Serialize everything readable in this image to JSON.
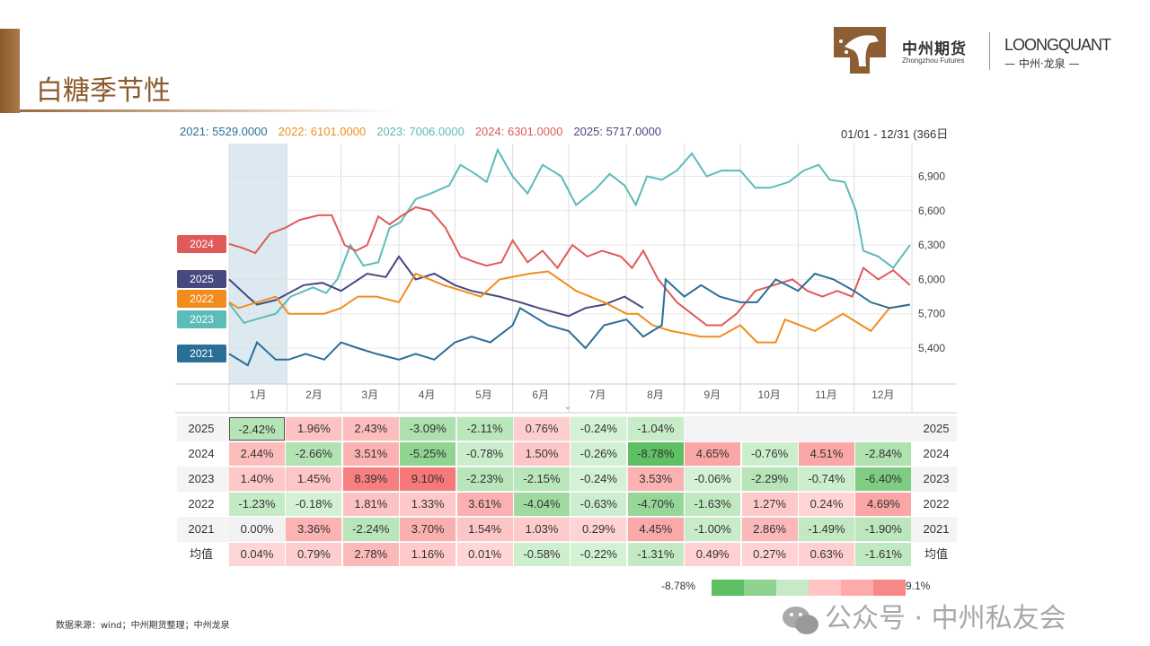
{
  "header": {
    "title": "白糖季节性",
    "brand_cn": "中州期货",
    "brand_en": "Zhongzhou Futures",
    "brand2": "LOONGQUANT",
    "brand2_sub": "— 中州·龙泉 —"
  },
  "legend": [
    {
      "label": "2021: 5529.0000",
      "color": "#2a6f97"
    },
    {
      "label": "2022: 6101.0000",
      "color": "#f28c1c"
    },
    {
      "label": "2023: 7006.0000",
      "color": "#5bbcb8"
    },
    {
      "label": "2024: 6301.0000",
      "color": "#e05a5a"
    },
    {
      "label": "2025: 5717.0000",
      "color": "#46497f"
    }
  ],
  "date_range": "01/01 - 12/31 (366日",
  "chart_data": {
    "type": "line",
    "xlabel": "",
    "ylabel": "",
    "ylim": [
      5150,
      7250
    ],
    "yticks": [
      "6,900",
      "6,600",
      "6,300",
      "6,000",
      "5,700",
      "5,400"
    ],
    "ytick_values": [
      6900,
      6600,
      6300,
      6000,
      5700,
      5400
    ],
    "months": [
      "1月",
      "2月",
      "3月",
      "4月",
      "5月",
      "6月",
      "7月",
      "8月",
      "9月",
      "10月",
      "11月",
      "12月"
    ],
    "x_unit": "day-of-year",
    "highlight_month": "1月",
    "series": [
      {
        "name": "2023",
        "tag": "2023",
        "color": "#5bbcb8",
        "x": [
          0,
          8,
          14,
          25,
          33,
          45,
          52,
          58,
          65,
          72,
          80,
          86,
          92,
          100,
          108,
          118,
          124,
          132,
          138,
          144,
          152,
          160,
          168,
          178,
          186,
          196,
          204,
          212,
          218,
          224,
          232,
          240,
          248,
          256,
          264,
          274,
          282,
          290,
          300,
          308,
          316,
          322,
          330,
          336,
          340,
          348,
          356,
          365
        ],
        "y": [
          5790,
          5620,
          5650,
          5700,
          5850,
          5930,
          5880,
          6000,
          6300,
          6120,
          6150,
          6450,
          6500,
          6700,
          6750,
          6820,
          7000,
          6920,
          6850,
          7130,
          6900,
          6750,
          7000,
          6900,
          6650,
          6780,
          6920,
          6820,
          6650,
          6900,
          6870,
          6950,
          7100,
          6900,
          6950,
          6950,
          6800,
          6800,
          6850,
          6950,
          7000,
          6870,
          6850,
          6600,
          6250,
          6200,
          6100,
          6300
        ]
      },
      {
        "name": "2024",
        "tag": "2024",
        "color": "#e05a5a",
        "x": [
          0,
          8,
          14,
          22,
          30,
          38,
          48,
          55,
          62,
          68,
          74,
          80,
          86,
          92,
          100,
          108,
          116,
          124,
          132,
          138,
          146,
          152,
          160,
          168,
          176,
          184,
          192,
          200,
          210,
          216,
          222,
          230,
          240,
          248,
          256,
          264,
          272,
          282,
          292,
          302,
          310,
          318,
          326,
          334,
          340,
          348,
          356,
          365
        ],
        "y": [
          6310,
          6270,
          6230,
          6400,
          6450,
          6520,
          6560,
          6560,
          6300,
          6250,
          6300,
          6550,
          6480,
          6550,
          6630,
          6600,
          6450,
          6200,
          6150,
          6120,
          6150,
          6340,
          6150,
          6250,
          6100,
          6300,
          6200,
          6250,
          6200,
          6100,
          6250,
          6000,
          5800,
          5700,
          5600,
          5600,
          5700,
          5900,
          5950,
          6000,
          5900,
          5850,
          5900,
          5850,
          6100,
          6000,
          6080,
          5950
        ]
      },
      {
        "name": "2025",
        "tag": "2025",
        "color": "#46497f",
        "x": [
          0,
          10,
          15,
          25,
          40,
          50,
          60,
          74,
          84,
          91,
          100,
          110,
          121,
          130,
          145,
          156,
          166,
          182,
          191,
          201,
          212,
          222
        ],
        "y": [
          6000,
          5850,
          5780,
          5820,
          5950,
          5970,
          5900,
          6050,
          6020,
          6200,
          6000,
          6050,
          5950,
          5900,
          5850,
          5800,
          5750,
          5680,
          5750,
          5780,
          5850,
          5750
        ]
      },
      {
        "name": "2022",
        "tag": "2022",
        "color": "#f28c1c",
        "x": [
          0,
          5,
          25,
          32,
          51,
          60,
          69,
          79,
          91,
          100,
          115,
          125,
          135,
          145,
          161,
          171,
          186,
          201,
          213,
          219,
          227,
          237,
          253,
          263,
          274,
          283,
          293,
          298,
          314,
          329,
          339,
          344,
          354,
          365
        ],
        "y": [
          5800,
          5750,
          5850,
          5700,
          5700,
          5750,
          5850,
          5850,
          5800,
          6050,
          5950,
          5900,
          5850,
          6000,
          6050,
          6070,
          5900,
          5800,
          5700,
          5700,
          5600,
          5550,
          5500,
          5500,
          5600,
          5450,
          5450,
          5650,
          5550,
          5700,
          5600,
          5550,
          5750,
          5780
        ]
      },
      {
        "name": "2021",
        "tag": "2021",
        "color": "#2a6f97",
        "x": [
          0,
          10,
          15,
          25,
          32,
          41,
          51,
          60,
          69,
          79,
          91,
          100,
          110,
          121,
          130,
          140,
          152,
          156,
          171,
          182,
          191,
          201,
          213,
          222,
          232,
          234,
          244,
          253,
          263,
          274,
          283,
          293,
          305,
          314,
          324,
          335,
          344,
          354,
          365
        ],
        "y": [
          5350,
          5250,
          5450,
          5300,
          5300,
          5350,
          5300,
          5450,
          5400,
          5350,
          5300,
          5350,
          5300,
          5450,
          5500,
          5450,
          5600,
          5750,
          5600,
          5550,
          5400,
          5600,
          5650,
          5500,
          5600,
          6000,
          5850,
          5950,
          5850,
          5800,
          5800,
          6000,
          5900,
          6050,
          6000,
          5900,
          5800,
          5750,
          5780
        ]
      }
    ]
  },
  "table": {
    "rows": [
      {
        "label": "2025",
        "values": [
          "-2.42%",
          "1.96%",
          "2.43%",
          "-3.09%",
          "-2.11%",
          "0.76%",
          "-0.24%",
          "-1.04%",
          "",
          "",
          "",
          ""
        ]
      },
      {
        "label": "2024",
        "values": [
          "2.44%",
          "-2.66%",
          "3.51%",
          "-5.25%",
          "-0.78%",
          "1.50%",
          "-0.26%",
          "-8.78%",
          "4.65%",
          "-0.76%",
          "4.51%",
          "-2.84%"
        ]
      },
      {
        "label": "2023",
        "values": [
          "1.40%",
          "1.45%",
          "8.39%",
          "9.10%",
          "-2.23%",
          "-2.15%",
          "-0.24%",
          "3.53%",
          "-0.06%",
          "-2.29%",
          "-0.74%",
          "-6.40%"
        ]
      },
      {
        "label": "2022",
        "values": [
          "-1.23%",
          "-0.18%",
          "1.81%",
          "1.33%",
          "3.61%",
          "-4.04%",
          "-0.63%",
          "-4.70%",
          "-1.63%",
          "1.27%",
          "0.24%",
          "4.69%"
        ]
      },
      {
        "label": "2021",
        "values": [
          "0.00%",
          "3.36%",
          "-2.24%",
          "3.70%",
          "1.54%",
          "1.03%",
          "0.29%",
          "4.45%",
          "-1.00%",
          "2.86%",
          "-1.49%",
          "-1.90%"
        ]
      },
      {
        "label": "均值",
        "values": [
          "0.04%",
          "0.79%",
          "2.78%",
          "1.16%",
          "0.01%",
          "-0.58%",
          "-0.22%",
          "-1.31%",
          "0.49%",
          "0.27%",
          "0.63%",
          "-1.61%"
        ]
      }
    ]
  },
  "scale": {
    "min_label": "-8.78%",
    "max_label": "9.1%",
    "colors": [
      "#5fbf63",
      "#8fd28f",
      "#c6eac6",
      "#ffc4c4",
      "#ffaaaa",
      "#f88787"
    ]
  },
  "watermark": "公众号 · 中州私友会",
  "source": "数据来源：wind；中州期货整理；中州龙泉"
}
